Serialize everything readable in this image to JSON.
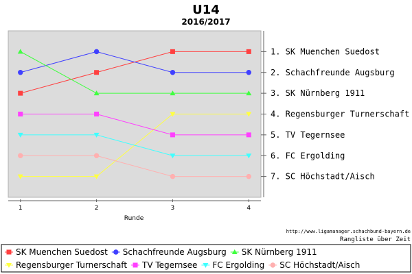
{
  "chart_data": {
    "type": "line",
    "title": "U14",
    "subtitle": "2016/2017",
    "xlabel": "Runde",
    "ylabel": "",
    "x": [
      1,
      2,
      3,
      4
    ],
    "ylim": [
      8,
      0
    ],
    "y_inverted": true,
    "grid": false,
    "background": "#dcdcdc",
    "legend_position": "bottom",
    "rank_labels": [
      "1. SK Muenchen Suedost",
      "2. Schachfreunde Augsburg",
      "3. SK Nürnberg 1911",
      "4. Regensburger Turnerschaft",
      "5. TV Tegernsee",
      "6. FC Ergolding",
      "7. SC Höchstadt/Aisch"
    ],
    "series": [
      {
        "name": "SK Muenchen Suedost",
        "values": [
          3,
          2,
          1,
          1
        ],
        "color": "#ff4040",
        "marker": "square"
      },
      {
        "name": "Schachfreunde Augsburg",
        "values": [
          2,
          1,
          2,
          2
        ],
        "color": "#4040ff",
        "marker": "circle"
      },
      {
        "name": "SK Nürnberg 1911",
        "values": [
          1,
          3,
          3,
          3
        ],
        "color": "#40ff40",
        "marker": "triangle-up"
      },
      {
        "name": "Regensburger Turnerschaft",
        "values": [
          7,
          7,
          4,
          4
        ],
        "color": "#ffff40",
        "marker": "triangle-down"
      },
      {
        "name": "TV Tegernsee",
        "values": [
          4,
          4,
          5,
          5
        ],
        "color": "#ff40ff",
        "marker": "square"
      },
      {
        "name": "FC Ergolding",
        "values": [
          5,
          5,
          6,
          6
        ],
        "color": "#40ffff",
        "marker": "triangle-down"
      },
      {
        "name": "SC Höchstadt/Aisch",
        "values": [
          6,
          6,
          7,
          7
        ],
        "color": "#ffb0b0",
        "marker": "circle"
      }
    ]
  },
  "credit": {
    "url": "http://www.ligamanager.schachbund-bayern.de",
    "caption": "Rangliste über Zeit"
  }
}
